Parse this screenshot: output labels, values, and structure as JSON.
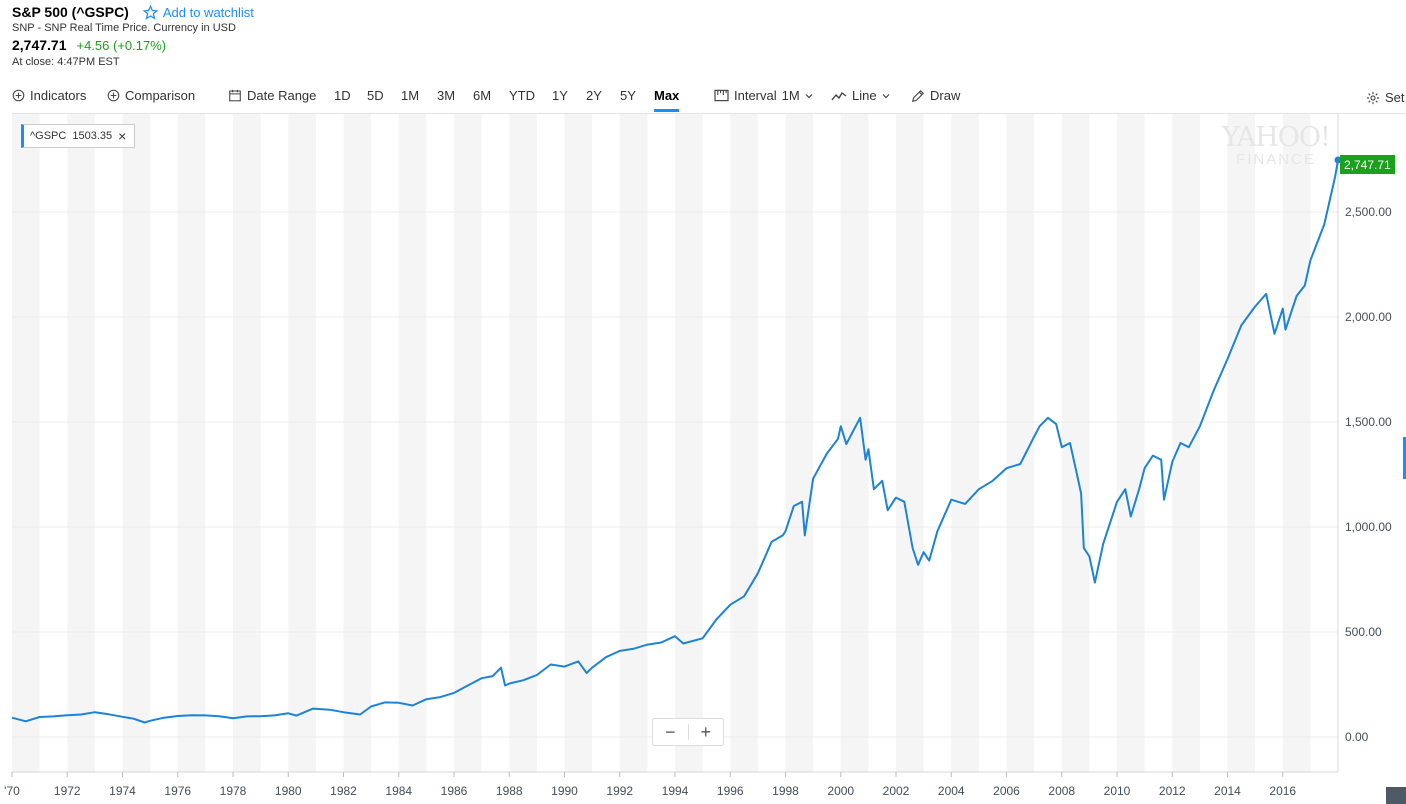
{
  "header": {
    "title": "S&P 500 (^GSPC)",
    "watchlist_label": "Add to watchlist",
    "subtitle": "SNP - SNP Real Time Price. Currency in USD",
    "price": "2,747.71",
    "change": "+4.56 (+0.17%)",
    "close_time": "At close: 4:47PM EST"
  },
  "toolbar": {
    "indicators": "Indicators",
    "comparison": "Comparison",
    "date_range": "Date Range",
    "ranges": [
      "1D",
      "5D",
      "1M",
      "3M",
      "6M",
      "YTD",
      "1Y",
      "2Y",
      "5Y",
      "Max"
    ],
    "active_range": "Max",
    "interval_label": "Interval",
    "interval_value": "1M",
    "chart_type": "Line",
    "draw": "Draw",
    "settings": "Set"
  },
  "legend": {
    "symbol": "^GSPC",
    "value": "1503.35"
  },
  "watermark": {
    "line1": "YAHOO!",
    "line2": "FINANCE"
  },
  "price_tag": "2,747.71",
  "zoom": {
    "minus": "−",
    "plus": "+"
  },
  "colors": {
    "accent": "#188fff",
    "line": "#1c83d6",
    "up": "#1ba11b",
    "band": "#f5f5f5"
  },
  "icons": {
    "watchlist": "star-icon",
    "indicators": "plus-circle-icon",
    "comparison": "plus-circle-icon",
    "date_range": "calendar-icon",
    "interval": "ruler-icon",
    "line": "line-chart-icon",
    "draw": "pencil-icon",
    "settings": "gear-icon"
  },
  "chart_data": {
    "type": "line",
    "series": [
      {
        "name": "^GSPC",
        "points": [
          [
            1970.0,
            92
          ],
          [
            1970.5,
            75
          ],
          [
            1971.0,
            95
          ],
          [
            1971.5,
            98
          ],
          [
            1972.0,
            104
          ],
          [
            1972.5,
            107
          ],
          [
            1973.0,
            118
          ],
          [
            1973.5,
            108
          ],
          [
            1974.0,
            96
          ],
          [
            1974.4,
            87
          ],
          [
            1974.8,
            69
          ],
          [
            1975.0,
            77
          ],
          [
            1975.5,
            92
          ],
          [
            1976.0,
            100
          ],
          [
            1976.5,
            104
          ],
          [
            1977.0,
            103
          ],
          [
            1977.5,
            99
          ],
          [
            1978.0,
            89
          ],
          [
            1978.5,
            98
          ],
          [
            1979.0,
            99
          ],
          [
            1979.5,
            103
          ],
          [
            1980.0,
            113
          ],
          [
            1980.3,
            102
          ],
          [
            1980.9,
            135
          ],
          [
            1981.5,
            130
          ],
          [
            1982.0,
            118
          ],
          [
            1982.6,
            107
          ],
          [
            1983.0,
            145
          ],
          [
            1983.5,
            165
          ],
          [
            1984.0,
            163
          ],
          [
            1984.5,
            150
          ],
          [
            1985.0,
            180
          ],
          [
            1985.5,
            190
          ],
          [
            1986.0,
            210
          ],
          [
            1986.5,
            245
          ],
          [
            1987.0,
            280
          ],
          [
            1987.4,
            290
          ],
          [
            1987.7,
            330
          ],
          [
            1987.85,
            245
          ],
          [
            1988.0,
            255
          ],
          [
            1988.5,
            270
          ],
          [
            1989.0,
            295
          ],
          [
            1989.5,
            345
          ],
          [
            1990.0,
            335
          ],
          [
            1990.5,
            360
          ],
          [
            1990.8,
            305
          ],
          [
            1991.0,
            330
          ],
          [
            1991.5,
            380
          ],
          [
            1992.0,
            410
          ],
          [
            1992.5,
            420
          ],
          [
            1993.0,
            440
          ],
          [
            1993.5,
            450
          ],
          [
            1994.0,
            480
          ],
          [
            1994.3,
            445
          ],
          [
            1995.0,
            470
          ],
          [
            1995.5,
            560
          ],
          [
            1996.0,
            630
          ],
          [
            1996.5,
            670
          ],
          [
            1997.0,
            780
          ],
          [
            1997.5,
            930
          ],
          [
            1997.9,
            960
          ],
          [
            1998.0,
            980
          ],
          [
            1998.3,
            1100
          ],
          [
            1998.6,
            1120
          ],
          [
            1998.7,
            960
          ],
          [
            1999.0,
            1230
          ],
          [
            1999.5,
            1350
          ],
          [
            1999.9,
            1420
          ],
          [
            2000.0,
            1480
          ],
          [
            2000.2,
            1395
          ],
          [
            2000.7,
            1520
          ],
          [
            2000.9,
            1320
          ],
          [
            2001.0,
            1370
          ],
          [
            2001.2,
            1180
          ],
          [
            2001.5,
            1220
          ],
          [
            2001.7,
            1080
          ],
          [
            2002.0,
            1140
          ],
          [
            2002.3,
            1120
          ],
          [
            2002.6,
            900
          ],
          [
            2002.8,
            820
          ],
          [
            2003.0,
            880
          ],
          [
            2003.2,
            840
          ],
          [
            2003.5,
            980
          ],
          [
            2004.0,
            1130
          ],
          [
            2004.5,
            1110
          ],
          [
            2005.0,
            1180
          ],
          [
            2005.5,
            1220
          ],
          [
            2006.0,
            1280
          ],
          [
            2006.5,
            1300
          ],
          [
            2007.0,
            1430
          ],
          [
            2007.2,
            1480
          ],
          [
            2007.5,
            1520
          ],
          [
            2007.8,
            1490
          ],
          [
            2008.0,
            1380
          ],
          [
            2008.3,
            1400
          ],
          [
            2008.5,
            1280
          ],
          [
            2008.7,
            1160
          ],
          [
            2008.8,
            900
          ],
          [
            2009.0,
            860
          ],
          [
            2009.2,
            735
          ],
          [
            2009.5,
            920
          ],
          [
            2010.0,
            1120
          ],
          [
            2010.3,
            1180
          ],
          [
            2010.5,
            1050
          ],
          [
            2010.8,
            1180
          ],
          [
            2011.0,
            1280
          ],
          [
            2011.3,
            1340
          ],
          [
            2011.6,
            1320
          ],
          [
            2011.7,
            1130
          ],
          [
            2012.0,
            1310
          ],
          [
            2012.3,
            1400
          ],
          [
            2012.6,
            1380
          ],
          [
            2013.0,
            1480
          ],
          [
            2013.5,
            1650
          ],
          [
            2014.0,
            1800
          ],
          [
            2014.5,
            1960
          ],
          [
            2015.0,
            2050
          ],
          [
            2015.4,
            2110
          ],
          [
            2015.7,
            1920
          ],
          [
            2016.0,
            2040
          ],
          [
            2016.1,
            1940
          ],
          [
            2016.5,
            2100
          ],
          [
            2016.8,
            2150
          ],
          [
            2017.0,
            2270
          ],
          [
            2017.5,
            2440
          ],
          [
            2017.9,
            2670
          ],
          [
            2018.0,
            2747.71
          ]
        ]
      }
    ],
    "x_ticks": [
      "'70",
      "1972",
      "1974",
      "1976",
      "1978",
      "1980",
      "1982",
      "1984",
      "1986",
      "1988",
      "1990",
      "1992",
      "1994",
      "1996",
      "1998",
      "2000",
      "2002",
      "2004",
      "2006",
      "2008",
      "2010",
      "2012",
      "2014",
      "2016"
    ],
    "y_ticks": [
      "0.00",
      "500.00",
      "1,000.00",
      "1,500.00",
      "2,000.00",
      "2,500.00"
    ],
    "x_range": [
      1970,
      2018
    ],
    "y_range": [
      0,
      2747.71
    ],
    "grid": true
  }
}
